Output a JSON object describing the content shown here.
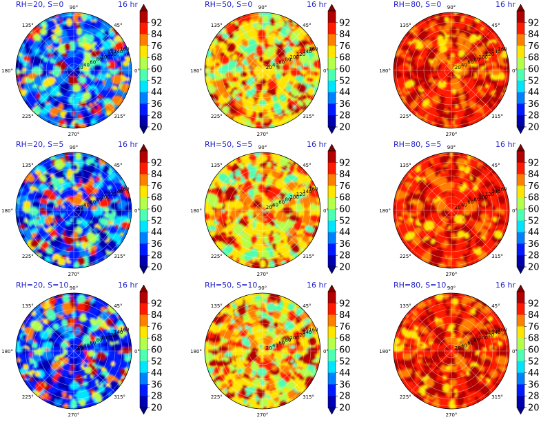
{
  "figure": {
    "colormap": "jet",
    "value_levels": [
      20,
      28,
      36,
      44,
      52,
      60,
      68,
      76,
      84,
      92
    ],
    "colorbar_ticks": [
      "92",
      "84",
      "76",
      "68",
      "60",
      "52",
      "44",
      "36",
      "28",
      "20"
    ],
    "angle_labels": [
      "90°",
      "45°",
      "0°",
      "315°",
      "270°",
      "225°",
      "180°",
      "135°"
    ],
    "radial_tick_labels": [
      "20",
      "40",
      "60",
      "80",
      "100",
      "120",
      "140",
      "160"
    ],
    "time_label": "16 hr"
  },
  "chart_data": [
    {
      "type": "heatmap",
      "projection": "polar",
      "title": "RH=20, S=0",
      "time": "16 hr",
      "rh": 20,
      "s": 0,
      "value_range": [
        20,
        92
      ],
      "mean_level": 36
    },
    {
      "type": "heatmap",
      "projection": "polar",
      "title": "RH=50, S=0",
      "time": "16 hr",
      "rh": 50,
      "s": 0,
      "value_range": [
        20,
        92
      ],
      "mean_level": 70
    },
    {
      "type": "heatmap",
      "projection": "polar",
      "title": "RH=80, S=0",
      "time": "16 hr",
      "rh": 80,
      "s": 0,
      "value_range": [
        20,
        92
      ],
      "mean_level": 88
    },
    {
      "type": "heatmap",
      "projection": "polar",
      "title": "RH=20, S=5",
      "time": "16 hr",
      "rh": 20,
      "s": 5,
      "value_range": [
        20,
        92
      ],
      "mean_level": 36
    },
    {
      "type": "heatmap",
      "projection": "polar",
      "title": "RH=50, S=5",
      "time": "16 hr",
      "rh": 50,
      "s": 5,
      "value_range": [
        20,
        92
      ],
      "mean_level": 70
    },
    {
      "type": "heatmap",
      "projection": "polar",
      "title": "RH=80, S=5",
      "time": "16 hr",
      "rh": 80,
      "s": 5,
      "value_range": [
        20,
        92
      ],
      "mean_level": 88
    },
    {
      "type": "heatmap",
      "projection": "polar",
      "title": "RH=20, S=10",
      "time": "16 hr",
      "rh": 20,
      "s": 10,
      "value_range": [
        20,
        92
      ],
      "mean_level": 34
    },
    {
      "type": "heatmap",
      "projection": "polar",
      "title": "RH=50, S=10",
      "time": "16 hr",
      "rh": 50,
      "s": 10,
      "value_range": [
        20,
        92
      ],
      "mean_level": 68
    },
    {
      "type": "heatmap",
      "projection": "polar",
      "title": "RH=80, S=10",
      "time": "16 hr",
      "rh": 80,
      "s": 10,
      "value_range": [
        20,
        92
      ],
      "mean_level": 86
    }
  ]
}
